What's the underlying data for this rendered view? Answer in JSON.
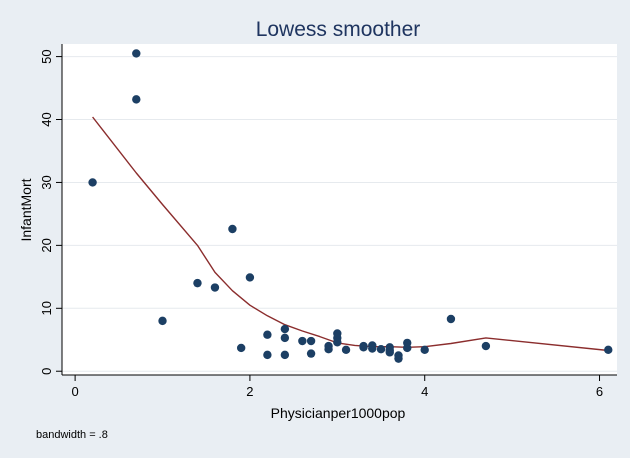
{
  "chart_data": {
    "type": "scatter",
    "title": "Lowess smoother",
    "xlabel": "Physicianper1000pop",
    "ylabel": "InfantMort",
    "note": "bandwidth = .8",
    "xlim": [
      -0.15,
      6.2
    ],
    "ylim": [
      -0.6,
      52
    ],
    "xticks": [
      0,
      2,
      4,
      6
    ],
    "yticks": [
      0,
      10,
      20,
      30,
      40,
      50
    ],
    "grid": true,
    "colors": {
      "background": "#e9eef3",
      "plot_area": "#ffffff",
      "title": "#1f3560",
      "points": "#1c3f64",
      "line": "#8b2d2d",
      "grid": "#e6eaee"
    },
    "series": [
      {
        "type": "scatter",
        "points": [
          [
            0.2,
            30
          ],
          [
            0.7,
            50.5
          ],
          [
            0.7,
            43.2
          ],
          [
            1.0,
            8
          ],
          [
            1.4,
            14
          ],
          [
            1.6,
            13.3
          ],
          [
            1.8,
            22.6
          ],
          [
            1.9,
            3.7
          ],
          [
            2.0,
            14.9
          ],
          [
            2.2,
            5.8
          ],
          [
            2.2,
            2.6
          ],
          [
            2.4,
            6.7
          ],
          [
            2.4,
            5.3
          ],
          [
            2.4,
            2.6
          ],
          [
            2.6,
            4.8
          ],
          [
            2.7,
            4.8
          ],
          [
            2.7,
            2.8
          ],
          [
            2.9,
            4.0
          ],
          [
            2.9,
            3.5
          ],
          [
            3.0,
            6.0
          ],
          [
            3.0,
            5.3
          ],
          [
            3.0,
            4.6
          ],
          [
            3.1,
            3.4
          ],
          [
            3.3,
            4.0
          ],
          [
            3.3,
            3.8
          ],
          [
            3.4,
            4.1
          ],
          [
            3.4,
            3.6
          ],
          [
            3.5,
            3.5
          ],
          [
            3.6,
            3.8
          ],
          [
            3.6,
            3.3
          ],
          [
            3.6,
            3.0
          ],
          [
            3.7,
            2.5
          ],
          [
            3.7,
            2.0
          ],
          [
            3.8,
            4.5
          ],
          [
            3.8,
            3.7
          ],
          [
            4.0,
            3.4
          ],
          [
            4.3,
            8.3
          ],
          [
            4.7,
            4.0
          ],
          [
            6.1,
            3.4
          ]
        ]
      },
      {
        "type": "line",
        "points": [
          [
            0.2,
            40.4
          ],
          [
            0.7,
            31.5
          ],
          [
            1.0,
            26.5
          ],
          [
            1.4,
            20.0
          ],
          [
            1.6,
            15.7
          ],
          [
            1.8,
            12.8
          ],
          [
            2.0,
            10.5
          ],
          [
            2.2,
            8.8
          ],
          [
            2.4,
            7.4
          ],
          [
            2.6,
            6.4
          ],
          [
            2.8,
            5.5
          ],
          [
            3.0,
            4.5
          ],
          [
            3.2,
            4.1
          ],
          [
            3.4,
            3.9
          ],
          [
            3.6,
            3.9
          ],
          [
            3.8,
            3.8
          ],
          [
            4.0,
            3.9
          ],
          [
            4.3,
            4.4
          ],
          [
            4.7,
            5.3
          ],
          [
            6.1,
            3.3
          ]
        ]
      }
    ]
  }
}
